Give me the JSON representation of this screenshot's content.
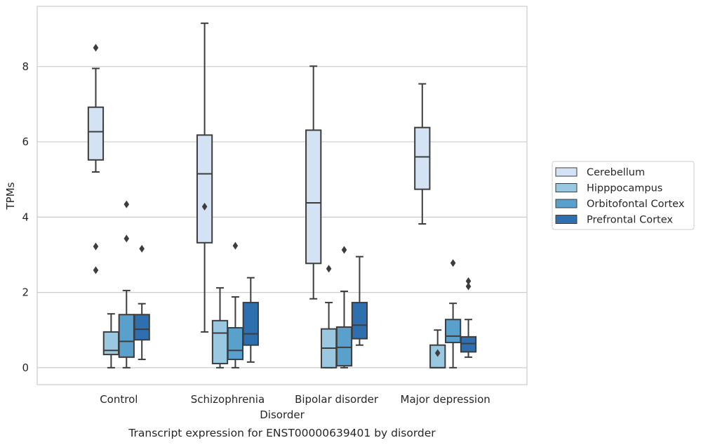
{
  "chart_data": {
    "type": "box",
    "title": "",
    "caption": "Transcript expression for ENST00000639401 by disorder",
    "xlabel": "Disorder",
    "ylabel": "TPMs",
    "ylim": [
      -0.45,
      9.6
    ],
    "yticks": [
      0,
      2,
      4,
      6,
      8
    ],
    "categories": [
      "Control",
      "Schizophrenia",
      "Bipolar disorder",
      "Major depression"
    ],
    "grid": true,
    "legend_position": "right",
    "series": [
      {
        "name": "Cerebellum",
        "color": "#d3e3f3",
        "boxes": [
          {
            "whisker_low": 5.2,
            "q1": 5.52,
            "median": 6.27,
            "q3": 6.92,
            "whisker_high": 7.95,
            "outliers": [
              8.5,
              3.22,
              2.59
            ]
          },
          {
            "whisker_low": 0.95,
            "q1": 3.32,
            "median": 5.15,
            "q3": 6.18,
            "whisker_high": 9.15,
            "outliers": [
              4.28
            ]
          },
          {
            "whisker_low": 1.83,
            "q1": 2.77,
            "median": 4.38,
            "q3": 6.31,
            "whisker_high": 8.01,
            "outliers": []
          },
          {
            "whisker_low": 3.82,
            "q1": 4.74,
            "median": 5.6,
            "q3": 6.38,
            "whisker_high": 7.54,
            "outliers": []
          }
        ]
      },
      {
        "name": "Hipppocampus",
        "color": "#9ac8e0",
        "boxes": [
          {
            "whisker_low": 0.0,
            "q1": 0.35,
            "median": 0.46,
            "q3": 0.95,
            "whisker_high": 1.43,
            "outliers": []
          },
          {
            "whisker_low": 0.0,
            "q1": 0.11,
            "median": 0.92,
            "q3": 1.25,
            "whisker_high": 2.12,
            "outliers": []
          },
          {
            "whisker_low": 0.0,
            "q1": 0.0,
            "median": 0.52,
            "q3": 1.03,
            "whisker_high": 1.73,
            "outliers": [
              2.63
            ]
          },
          {
            "whisker_low": 0.0,
            "q1": 0.0,
            "median": 0.0,
            "q3": 0.6,
            "whisker_high": 1.0,
            "outliers": [
              0.39
            ]
          }
        ]
      },
      {
        "name": "Orbitofontal Cortex",
        "color": "#5aa0cd",
        "boxes": [
          {
            "whisker_low": 0.0,
            "q1": 0.28,
            "median": 0.7,
            "q3": 1.41,
            "whisker_high": 2.05,
            "outliers": [
              4.34,
              3.43
            ]
          },
          {
            "whisker_low": 0.0,
            "q1": 0.22,
            "median": 0.46,
            "q3": 1.06,
            "whisker_high": 1.88,
            "outliers": [
              3.24
            ]
          },
          {
            "whisker_low": 0.0,
            "q1": 0.05,
            "median": 0.54,
            "q3": 1.08,
            "whisker_high": 2.03,
            "outliers": [
              3.13
            ]
          },
          {
            "whisker_low": 0.0,
            "q1": 0.67,
            "median": 0.84,
            "q3": 1.28,
            "whisker_high": 1.71,
            "outliers": [
              2.78
            ]
          }
        ]
      },
      {
        "name": "Prefrontal Cortex",
        "color": "#2d6faf",
        "boxes": [
          {
            "whisker_low": 0.22,
            "q1": 0.74,
            "median": 1.02,
            "q3": 1.41,
            "whisker_high": 1.7,
            "outliers": [
              3.16
            ]
          },
          {
            "whisker_low": 0.15,
            "q1": 0.6,
            "median": 0.9,
            "q3": 1.73,
            "whisker_high": 2.39,
            "outliers": []
          },
          {
            "whisker_low": 0.6,
            "q1": 0.77,
            "median": 1.13,
            "q3": 1.73,
            "whisker_high": 2.95,
            "outliers": []
          },
          {
            "whisker_low": 0.28,
            "q1": 0.42,
            "median": 0.64,
            "q3": 0.82,
            "whisker_high": 1.28,
            "outliers": [
              2.3,
              2.16
            ]
          }
        ]
      }
    ]
  }
}
